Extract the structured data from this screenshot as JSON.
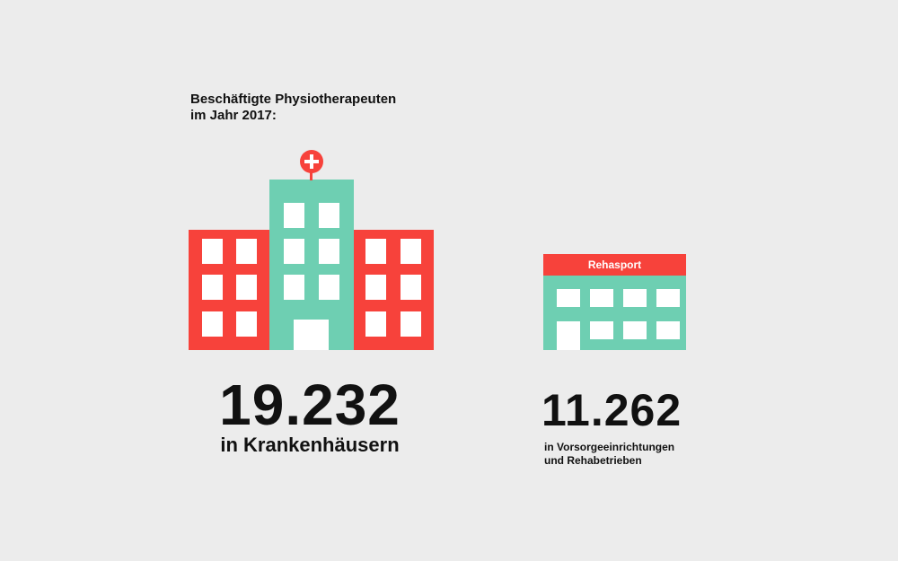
{
  "title": {
    "line1": "Beschäftigte Physiotherapeuten",
    "line2": "im Jahr 2017:"
  },
  "hospital": {
    "value": "19.232",
    "label": "in Krankenhäusern",
    "icon": "hospital-building-icon"
  },
  "rehab": {
    "sign": "Rehasport",
    "value": "11.262",
    "label_line1": "in Vorsorgeeinrichtungen",
    "label_line2": "und Rehabetrieben",
    "icon": "rehab-building-icon"
  },
  "colors": {
    "background": "#ececec",
    "red": "#f7423b",
    "teal": "#6ecfb2",
    "window": "#ffffff"
  }
}
